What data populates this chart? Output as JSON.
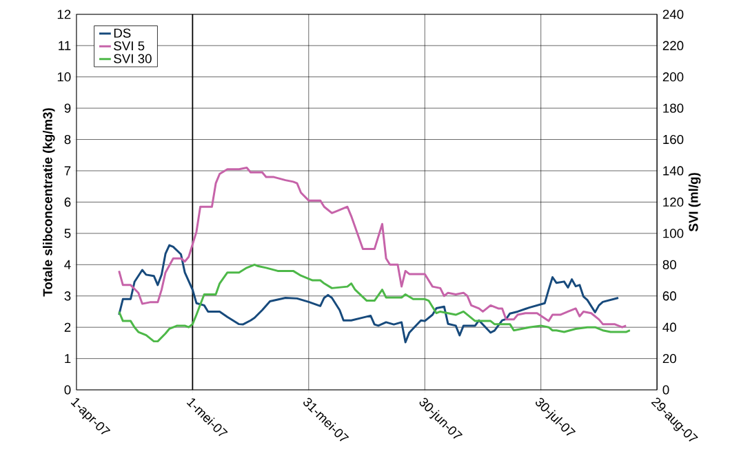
{
  "chart_data": {
    "type": "line",
    "ylabel": "Totale slibconcentratie (kg/m3)",
    "y2label": "SVI (ml/g)",
    "xlim": [
      "2007-04-01",
      "2007-08-29"
    ],
    "xticks": [
      {
        "value": "2007-04-01",
        "label": "1-apr-07"
      },
      {
        "value": "2007-05-01",
        "label": "1-mei-07"
      },
      {
        "value": "2007-05-31",
        "label": "31-mei-07"
      },
      {
        "value": "2007-06-30",
        "label": "30-jun-07"
      },
      {
        "value": "2007-07-30",
        "label": "30-jul-07"
      },
      {
        "value": "2007-08-29",
        "label": "29-aug-07"
      }
    ],
    "ylim": [
      0,
      12
    ],
    "yticks": [
      0,
      1,
      2,
      3,
      4,
      5,
      6,
      7,
      8,
      9,
      10,
      11,
      12
    ],
    "y2lim": [
      0,
      240
    ],
    "y2ticks": [
      0,
      20,
      40,
      60,
      80,
      100,
      120,
      140,
      160,
      180,
      200,
      220,
      240
    ],
    "grid": true,
    "legend": "top left",
    "marker": "none",
    "line_style": "solid",
    "ref_lines": [
      {
        "axis": "x",
        "value": "2007-05-01",
        "color": "#000000"
      }
    ],
    "series": [
      {
        "name": "DS",
        "color": "#174a7c",
        "x": [
          "2007-04-12",
          "2007-04-13",
          "2007-04-15",
          "2007-04-16",
          "2007-04-18",
          "2007-04-19",
          "2007-04-21",
          "2007-04-22",
          "2007-04-23",
          "2007-04-24",
          "2007-04-25",
          "2007-04-26",
          "2007-04-28",
          "2007-04-29",
          "2007-05-01",
          "2007-05-02",
          "2007-05-04",
          "2007-05-05",
          "2007-05-08",
          "2007-05-10",
          "2007-05-13",
          "2007-05-14",
          "2007-05-16",
          "2007-05-17",
          "2007-05-19",
          "2007-05-21",
          "2007-05-25",
          "2007-05-28",
          "2007-05-31",
          "2007-06-03",
          "2007-06-04",
          "2007-06-05",
          "2007-06-06",
          "2007-06-08",
          "2007-06-09",
          "2007-06-11",
          "2007-06-14",
          "2007-06-16",
          "2007-06-17",
          "2007-06-18",
          "2007-06-20",
          "2007-06-22",
          "2007-06-24",
          "2007-06-25",
          "2007-06-26",
          "2007-06-27",
          "2007-06-29",
          "2007-06-30",
          "2007-07-02",
          "2007-07-03",
          "2007-07-05",
          "2007-07-06",
          "2007-07-08",
          "2007-07-09",
          "2007-07-10",
          "2007-07-13",
          "2007-07-14",
          "2007-07-17",
          "2007-07-18",
          "2007-07-20",
          "2007-07-21",
          "2007-07-22",
          "2007-07-24",
          "2007-07-27",
          "2007-07-31",
          "2007-08-01",
          "2007-08-02",
          "2007-08-03",
          "2007-08-05",
          "2007-08-06",
          "2007-08-07",
          "2007-08-08",
          "2007-08-09",
          "2007-08-10",
          "2007-08-11",
          "2007-08-13",
          "2007-08-14",
          "2007-08-15",
          "2007-08-19"
        ],
        "values": [
          2.4,
          2.9,
          2.9,
          3.45,
          3.83,
          3.68,
          3.64,
          3.35,
          3.68,
          4.35,
          4.62,
          4.57,
          4.33,
          3.75,
          3.2,
          2.77,
          2.7,
          2.5,
          2.5,
          2.33,
          2.1,
          2.09,
          2.22,
          2.3,
          2.55,
          2.83,
          2.94,
          2.92,
          2.81,
          2.68,
          2.94,
          3.03,
          2.94,
          2.55,
          2.22,
          2.22,
          2.31,
          2.37,
          2.09,
          2.05,
          2.16,
          2.09,
          2.16,
          1.52,
          1.83,
          1.96,
          2.22,
          2.2,
          2.4,
          2.61,
          2.66,
          2.11,
          2.05,
          1.74,
          2.05,
          2.05,
          2.22,
          1.83,
          1.89,
          2.22,
          2.26,
          2.44,
          2.5,
          2.63,
          2.77,
          3.2,
          3.6,
          3.42,
          3.46,
          3.27,
          3.53,
          3.31,
          3.35,
          2.98,
          2.87,
          2.48,
          2.7,
          2.81,
          2.94
        ]
      },
      {
        "name": "SVI 5",
        "color": "#c663a9",
        "axis": "y2",
        "x": [
          "2007-04-12",
          "2007-04-13",
          "2007-04-15",
          "2007-04-17",
          "2007-04-18",
          "2007-04-20",
          "2007-04-22",
          "2007-04-23",
          "2007-04-24",
          "2007-04-26",
          "2007-04-28",
          "2007-04-29",
          "2007-04-30",
          "2007-05-02",
          "2007-05-03",
          "2007-05-06",
          "2007-05-07",
          "2007-05-08",
          "2007-05-10",
          "2007-05-13",
          "2007-05-15",
          "2007-05-16",
          "2007-05-19",
          "2007-05-20",
          "2007-05-22",
          "2007-05-25",
          "2007-05-27",
          "2007-05-28",
          "2007-05-29",
          "2007-05-31",
          "2007-06-03",
          "2007-06-04",
          "2007-06-06",
          "2007-06-07",
          "2007-06-10",
          "2007-06-11",
          "2007-06-14",
          "2007-06-17",
          "2007-06-19",
          "2007-06-20",
          "2007-06-21",
          "2007-06-23",
          "2007-06-24",
          "2007-06-25",
          "2007-06-26",
          "2007-06-27",
          "2007-06-30",
          "2007-07-02",
          "2007-07-04",
          "2007-07-05",
          "2007-07-06",
          "2007-07-08",
          "2007-07-10",
          "2007-07-11",
          "2007-07-12",
          "2007-07-14",
          "2007-07-15",
          "2007-07-17",
          "2007-07-19",
          "2007-07-20",
          "2007-07-21",
          "2007-07-23",
          "2007-07-24",
          "2007-07-26",
          "2007-07-29",
          "2007-08-01",
          "2007-08-02",
          "2007-08-04",
          "2007-08-06",
          "2007-08-08",
          "2007-08-09",
          "2007-08-10",
          "2007-08-12",
          "2007-08-14",
          "2007-08-15",
          "2007-08-18",
          "2007-08-20",
          "2007-08-21"
        ],
        "values": [
          76,
          67,
          67,
          62,
          55,
          56,
          56,
          64,
          75,
          84,
          84,
          82,
          85,
          101,
          117,
          117,
          132,
          138,
          141,
          141,
          142,
          139,
          139,
          136,
          136,
          134,
          133,
          132,
          126,
          121,
          121,
          117,
          113,
          114,
          117,
          111,
          90,
          90,
          106,
          84,
          80,
          80,
          66,
          76,
          74,
          74,
          74,
          66,
          65,
          60,
          62,
          61,
          62,
          60,
          54,
          52,
          50,
          54,
          52,
          52,
          45,
          45,
          48,
          49,
          49,
          44,
          48,
          48,
          50,
          52,
          47,
          50,
          49,
          45,
          42,
          42,
          40,
          41
        ]
      },
      {
        "name": "SVI 30",
        "color": "#4db848",
        "axis": "y2",
        "x": [
          "2007-04-12",
          "2007-04-13",
          "2007-04-15",
          "2007-04-16",
          "2007-04-17",
          "2007-04-19",
          "2007-04-21",
          "2007-04-22",
          "2007-04-24",
          "2007-04-25",
          "2007-04-27",
          "2007-04-29",
          "2007-04-30",
          "2007-05-01",
          "2007-05-02",
          "2007-05-04",
          "2007-05-07",
          "2007-05-08",
          "2007-05-10",
          "2007-05-11",
          "2007-05-13",
          "2007-05-15",
          "2007-05-17",
          "2007-05-18",
          "2007-05-20",
          "2007-05-23",
          "2007-05-27",
          "2007-05-29",
          "2007-06-01",
          "2007-06-03",
          "2007-06-04",
          "2007-06-06",
          "2007-06-10",
          "2007-06-11",
          "2007-06-12",
          "2007-06-15",
          "2007-06-17",
          "2007-06-19",
          "2007-06-20",
          "2007-06-24",
          "2007-06-25",
          "2007-06-27",
          "2007-06-30",
          "2007-07-01",
          "2007-07-03",
          "2007-07-04",
          "2007-07-06",
          "2007-07-08",
          "2007-07-10",
          "2007-07-13",
          "2007-07-15",
          "2007-07-17",
          "2007-07-18",
          "2007-07-19",
          "2007-07-22",
          "2007-07-23",
          "2007-07-25",
          "2007-07-27",
          "2007-07-30",
          "2007-08-01",
          "2007-08-02",
          "2007-08-03",
          "2007-08-05",
          "2007-08-08",
          "2007-08-11",
          "2007-08-13",
          "2007-08-15",
          "2007-08-17",
          "2007-08-19",
          "2007-08-21",
          "2007-08-22"
        ],
        "values": [
          50,
          44,
          44,
          40,
          37,
          35,
          31,
          31,
          36,
          39,
          41,
          41,
          40,
          42,
          48,
          61,
          61,
          68,
          75,
          75,
          75,
          78,
          80,
          79,
          78,
          76,
          76,
          73,
          70,
          70,
          68,
          65,
          66,
          68,
          64,
          57,
          57,
          64,
          59,
          59,
          61,
          58,
          58,
          57,
          49,
          50,
          49,
          48,
          50,
          44,
          44,
          44,
          42,
          42,
          42,
          38,
          39,
          40,
          41,
          40,
          38,
          38,
          37,
          39,
          40,
          40,
          38,
          37,
          37,
          37,
          38
        ]
      }
    ]
  }
}
